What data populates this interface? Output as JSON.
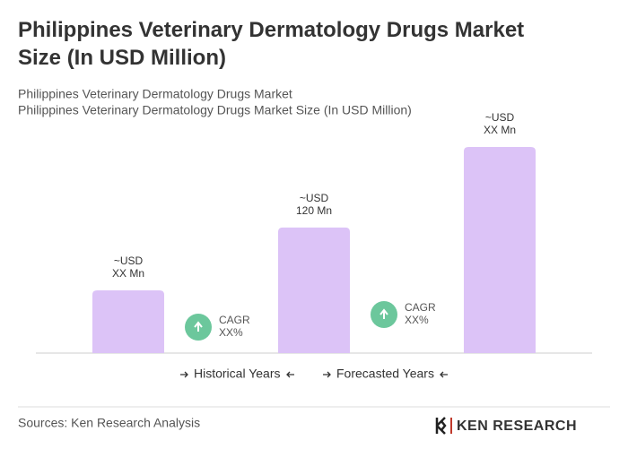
{
  "chart_data": {
    "type": "bar",
    "title": "Philippines Veterinary Dermatology Drugs Market Size (In USD Million)",
    "subtitle": [
      "Philippines Veterinary Dermatology Drugs Market",
      "Philippines Veterinary Dermatology Drugs Market Size (In USD Million)"
    ],
    "categories": [
      null,
      null,
      null
    ],
    "values": [
      60,
      120,
      197
    ],
    "value_labels": [
      [
        "~USD",
        "XX Mn"
      ],
      [
        "~USD",
        "120 Mn"
      ],
      [
        "~USD",
        "XX Mn"
      ]
    ],
    "color": "#dcc3f7",
    "annotations": [
      [
        "CAGR",
        "XX%"
      ],
      [
        "CAGR",
        "XX%"
      ]
    ],
    "periods": [
      "Historical Years",
      "Forecasted Years"
    ],
    "source": "Sources: Ken Research Analysis",
    "logo": "KEN RESEARCH"
  }
}
